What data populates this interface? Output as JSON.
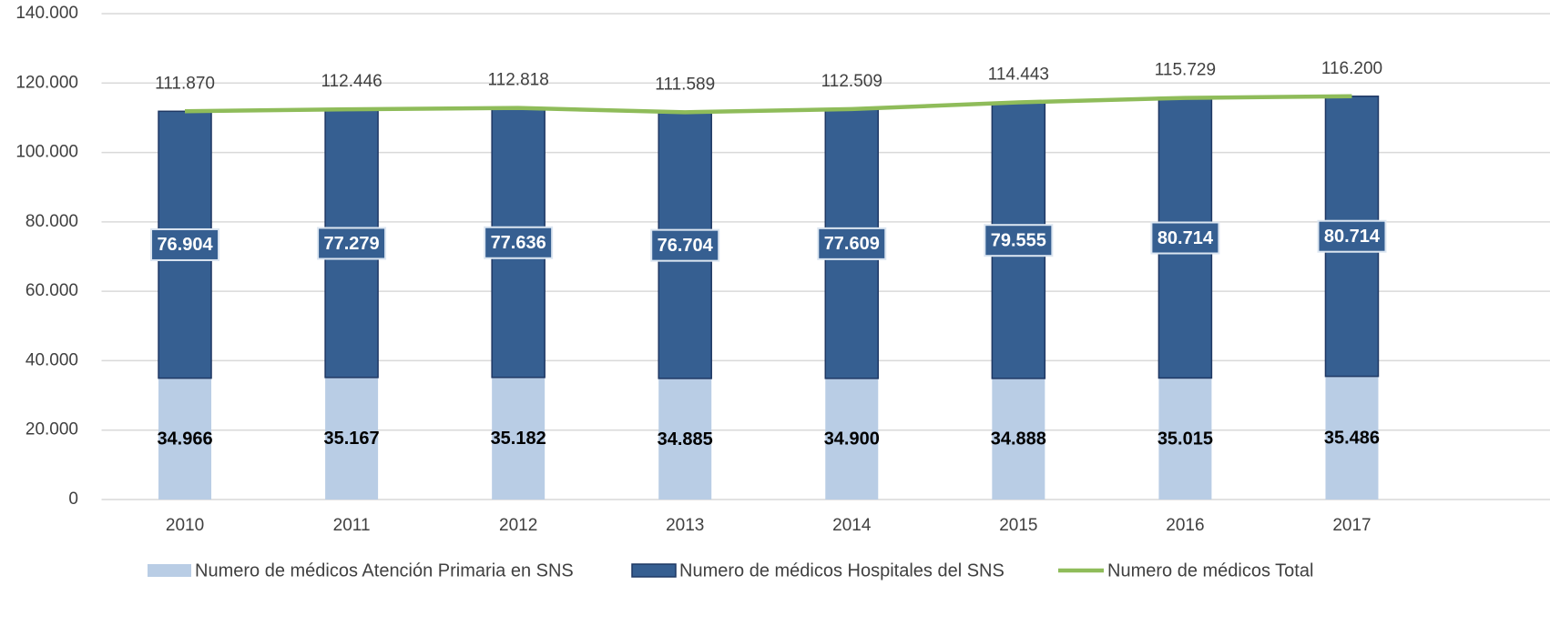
{
  "chart_data": {
    "type": "bar",
    "categories": [
      "2010",
      "2011",
      "2012",
      "2013",
      "2014",
      "2015",
      "2016",
      "2017"
    ],
    "series": [
      {
        "name": "Numero de médicos Atención Primaria en SNS",
        "type": "bar",
        "color": "#b9cde5",
        "values": [
          34966,
          35167,
          35182,
          34885,
          34900,
          34888,
          35015,
          35486
        ],
        "value_labels": [
          "34.966",
          "35.167",
          "35.182",
          "34.885",
          "34.900",
          "34.888",
          "35.015",
          "35.486"
        ]
      },
      {
        "name": "Numero de médicos Hospitales del SNS",
        "type": "bar",
        "color": "#365f91",
        "values": [
          76904,
          77279,
          77636,
          76704,
          77609,
          79555,
          80714,
          80714
        ],
        "value_labels": [
          "76.904",
          "77.279",
          "77.636",
          "76.704",
          "77.609",
          "79.555",
          "80.714",
          "80.714"
        ]
      },
      {
        "name": "Numero de médicos Total",
        "type": "line",
        "color": "#8fbc5a",
        "values": [
          111870,
          112446,
          112818,
          111589,
          112509,
          114443,
          115729,
          116200
        ],
        "value_labels": [
          "111.870",
          "112.446",
          "112.818",
          "111.589",
          "112.509",
          "114.443",
          "115.729",
          "116.200"
        ]
      }
    ],
    "ylim": [
      0,
      140000
    ],
    "yticks": [
      0,
      {
        "value": 20000,
        "label": "20.000"
      },
      {
        "value": 40000,
        "label": "40.000"
      },
      {
        "value": 60000,
        "label": "60.000"
      },
      {
        "value": 80000,
        "label": "80.000"
      },
      {
        "value": 100000,
        "label": "100.000"
      },
      {
        "value": 120000,
        "label": "120.000"
      },
      {
        "value": 140000,
        "label": "140.000"
      }
    ],
    "grid": true
  }
}
